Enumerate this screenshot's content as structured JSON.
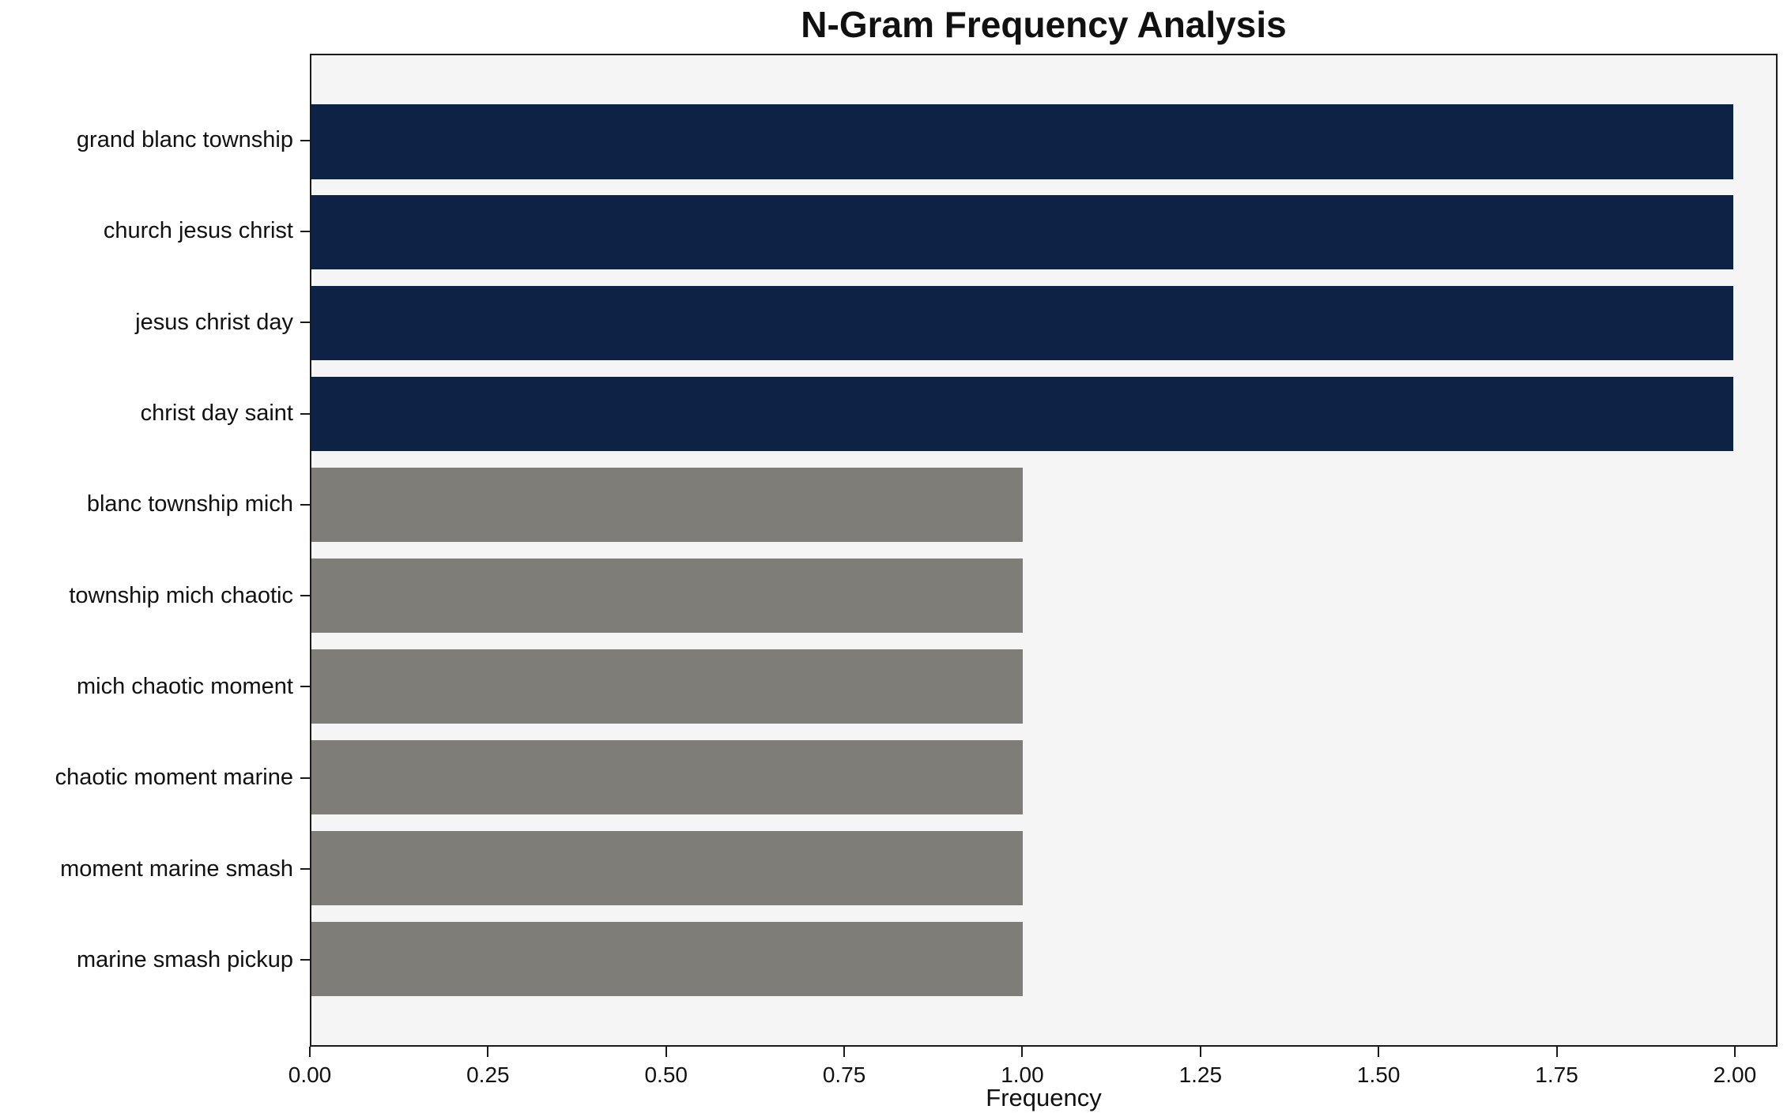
{
  "chart_data": {
    "type": "bar",
    "orientation": "horizontal",
    "title": "N-Gram Frequency Analysis",
    "xlabel": "Frequency",
    "ylabel": "",
    "categories": [
      "grand blanc township",
      "church jesus christ",
      "jesus christ day",
      "christ day saint",
      "blanc township mich",
      "township mich chaotic",
      "mich chaotic moment",
      "chaotic moment marine",
      "moment marine smash",
      "marine smash pickup"
    ],
    "values": [
      2,
      2,
      2,
      2,
      1,
      1,
      1,
      1,
      1,
      1
    ],
    "bar_colors": [
      "#0d2345",
      "#0d2345",
      "#0d2345",
      "#0d2345",
      "#7f7d78",
      "#7f7d78",
      "#7f7d78",
      "#7f7d78",
      "#7f7d78",
      "#7f7d78"
    ],
    "xlim": [
      0,
      2.06
    ],
    "xticks": [
      0,
      0.25,
      0.5,
      0.75,
      1,
      1.25,
      1.5,
      1.75,
      2
    ],
    "xtick_labels": [
      "0.00",
      "0.25",
      "0.50",
      "0.75",
      "1.00",
      "1.25",
      "1.50",
      "1.75",
      "2.00"
    ],
    "grid": false,
    "legend": "none",
    "plot_background": "#f5f5f5",
    "colors": {
      "high_frequency": "#0d2345",
      "low_frequency": "#7f7d78"
    }
  }
}
